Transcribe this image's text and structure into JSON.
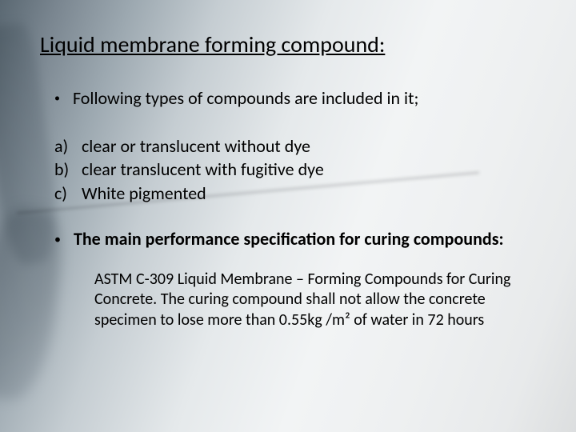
{
  "colors": {
    "text": "#000000",
    "bg_light": "#eef0f1",
    "bg_dark": "#5a6872"
  },
  "typography": {
    "title_fontsize": 28,
    "body_fontsize": 22,
    "para_fontsize": 20,
    "font_family": "Calibri"
  },
  "title": "Liquid membrane forming compound:",
  "intro": {
    "bullet": "•",
    "text": "Following types of compounds are included in it;"
  },
  "types": [
    {
      "label": "a)",
      "text": "clear or translucent without dye"
    },
    {
      "label": "b)",
      "text": "clear translucent with fugitive dye"
    },
    {
      "label": "c)",
      "text": "White pigmented"
    }
  ],
  "spec": {
    "bullet": "•",
    "heading": "The main performance specification for curing compounds:",
    "paragraph": "ASTM C-309 Liquid Membrane – Forming Compounds for Curing Concrete. The curing  compound shall not allow the concrete specimen to lose more than 0.55kg /m² of water in 72 hours"
  }
}
